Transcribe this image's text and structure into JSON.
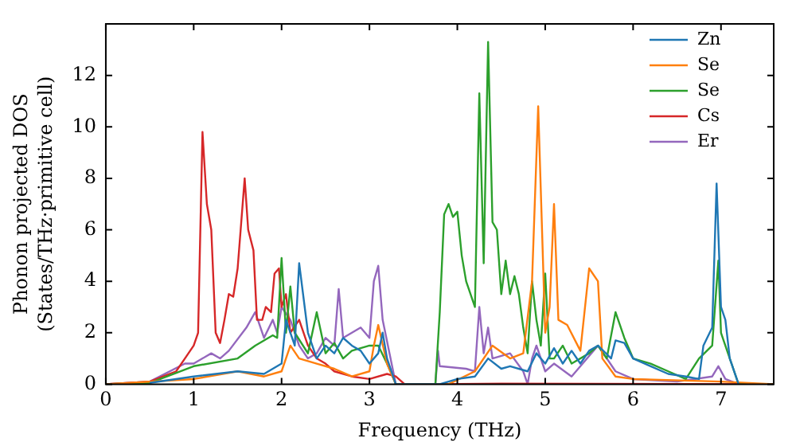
{
  "chart_data": {
    "type": "line",
    "xlabel": "Frequency (THz)",
    "ylabel": "Phonon projected DOS\n(States/THz·primitive cell)",
    "xlim": [
      0,
      7.6
    ],
    "ylim": [
      0,
      14
    ],
    "xticks": [
      0,
      1,
      2,
      3,
      4,
      5,
      6,
      7
    ],
    "yticks": [
      0,
      2,
      4,
      6,
      8,
      10,
      12
    ],
    "grid": false,
    "legend": "top right",
    "marker": "none",
    "line_style": "solid",
    "series": [
      {
        "name": "Zn",
        "color": "#1f77b4",
        "x": [
          0.5,
          1,
          1.5,
          1.8,
          2.0,
          2.05,
          2.15,
          2.2,
          2.3,
          2.4,
          2.5,
          2.6,
          2.7,
          2.8,
          2.9,
          3.0,
          3.1,
          3.15,
          3.2,
          3.3,
          3.8,
          4.0,
          4.2,
          4.35,
          4.5,
          4.6,
          4.8,
          4.9,
          5.0,
          5.1,
          5.2,
          5.3,
          5.4,
          5.5,
          5.6,
          5.75,
          5.8,
          5.9,
          6.0,
          6.2,
          6.4,
          6.6,
          6.75,
          6.8,
          6.9,
          6.95,
          7.0,
          7.05,
          7.1,
          7.2
        ],
        "values": [
          0.05,
          0.3,
          0.5,
          0.4,
          0.8,
          2.5,
          1.5,
          4.7,
          2.0,
          1.0,
          1.5,
          1.2,
          1.8,
          1.5,
          1.3,
          0.8,
          1.2,
          2.0,
          1.0,
          0,
          0,
          0.2,
          0.3,
          1.0,
          0.6,
          0.7,
          0.5,
          1.2,
          0.8,
          1.4,
          0.8,
          1.3,
          0.8,
          1.3,
          1.5,
          1.0,
          1.7,
          1.6,
          1.0,
          0.7,
          0.4,
          0.3,
          0.2,
          1.5,
          2.2,
          7.8,
          3.0,
          2.5,
          1.0,
          0
        ]
      },
      {
        "name": "Se",
        "color": "#ff7f0e",
        "x": [
          0,
          1,
          1.5,
          1.8,
          2.0,
          2.1,
          2.2,
          2.4,
          2.6,
          2.8,
          3.0,
          3.05,
          3.1,
          3.2,
          3.3,
          3.9,
          4.2,
          4.4,
          4.6,
          4.75,
          4.85,
          4.92,
          5.0,
          5.05,
          5.1,
          5.15,
          5.25,
          5.4,
          5.5,
          5.6,
          5.65,
          5.8,
          6.0,
          7.0,
          7.6
        ],
        "values": [
          0,
          0.2,
          0.5,
          0.3,
          0.5,
          1.5,
          1.0,
          0.8,
          0.6,
          0.3,
          0.5,
          1.5,
          2.3,
          0.8,
          0,
          0,
          0.5,
          1.5,
          1.0,
          1.2,
          4.0,
          10.8,
          2.0,
          3.0,
          7.0,
          2.5,
          2.3,
          1.3,
          4.5,
          4.0,
          1.0,
          0.3,
          0.2,
          0.1,
          0
        ]
      },
      {
        "name": "Se",
        "color": "#2ca02c",
        "x": [
          0,
          0.5,
          1,
          1.5,
          1.7,
          1.8,
          1.9,
          1.95,
          2.0,
          2.05,
          2.1,
          2.15,
          2.3,
          2.4,
          2.5,
          2.6,
          2.7,
          2.8,
          3.0,
          3.1,
          3.2,
          3.3,
          3.75,
          3.8,
          3.85,
          3.9,
          3.95,
          4.0,
          4.05,
          4.1,
          4.2,
          4.25,
          4.3,
          4.35,
          4.4,
          4.45,
          4.5,
          4.55,
          4.6,
          4.65,
          4.7,
          4.75,
          4.8,
          4.85,
          4.9,
          4.95,
          5.0,
          5.05,
          5.1,
          5.2,
          5.3,
          5.5,
          5.6,
          5.7,
          5.8,
          5.9,
          6.0,
          6.2,
          6.4,
          6.6,
          6.75,
          6.9,
          6.97,
          7.0,
          7.1,
          7.2,
          7.6
        ],
        "values": [
          0,
          0.05,
          0.7,
          1.0,
          1.5,
          1.7,
          1.9,
          1.8,
          4.9,
          2.0,
          3.8,
          2.0,
          1.2,
          2.8,
          1.2,
          1.6,
          1.0,
          1.3,
          1.5,
          1.5,
          0.8,
          0,
          0,
          2.8,
          6.6,
          7.0,
          6.5,
          6.7,
          5.0,
          4.0,
          3.0,
          11.3,
          4.7,
          13.3,
          6.3,
          6.0,
          3.5,
          4.8,
          3.5,
          4.2,
          3.5,
          2.2,
          1.2,
          4.0,
          2.5,
          1.5,
          4.3,
          1.0,
          1.0,
          1.5,
          0.8,
          1.2,
          1.5,
          1.0,
          2.8,
          1.8,
          1.0,
          0.8,
          0.5,
          0.2,
          1.0,
          1.5,
          4.8,
          2.0,
          1.0,
          0,
          0
        ]
      },
      {
        "name": "Cs",
        "color": "#d62728",
        "x": [
          0,
          0.5,
          0.8,
          0.9,
          1.0,
          1.05,
          1.1,
          1.15,
          1.2,
          1.25,
          1.3,
          1.35,
          1.4,
          1.45,
          1.5,
          1.58,
          1.62,
          1.68,
          1.72,
          1.78,
          1.82,
          1.88,
          1.92,
          1.97,
          2.0,
          2.05,
          2.1,
          2.2,
          2.3,
          2.4,
          2.5,
          2.6,
          2.8,
          3.0,
          3.2,
          3.3,
          3.4,
          3.7,
          4.5,
          7.6
        ],
        "values": [
          0,
          0.1,
          0.5,
          1.0,
          1.5,
          2.0,
          9.8,
          7.0,
          6.0,
          2.0,
          1.6,
          2.5,
          3.5,
          3.4,
          4.5,
          8.0,
          6.0,
          5.2,
          2.5,
          2.5,
          3.0,
          2.8,
          4.3,
          4.5,
          3.0,
          3.5,
          2.0,
          2.5,
          1.5,
          1.0,
          0.8,
          0.5,
          0.3,
          0.2,
          0.4,
          0.3,
          0,
          0,
          0.02,
          0
        ]
      },
      {
        "name": "Er",
        "color": "#9467bd",
        "x": [
          0,
          0.5,
          0.9,
          1.0,
          1.1,
          1.2,
          1.3,
          1.4,
          1.6,
          1.7,
          1.8,
          1.9,
          1.95,
          2.0,
          2.1,
          2.2,
          2.3,
          2.4,
          2.5,
          2.6,
          2.65,
          2.7,
          2.8,
          2.9,
          3.0,
          3.05,
          3.1,
          3.15,
          3.3,
          3.75,
          3.78,
          3.8,
          4.1,
          4.2,
          4.25,
          4.3,
          4.35,
          4.4,
          4.6,
          4.75,
          4.8,
          4.85,
          4.9,
          5.0,
          5.1,
          5.3,
          5.6,
          5.8,
          6.0,
          6.5,
          6.9,
          6.97,
          7.05,
          7.2,
          7.6
        ],
        "values": [
          0,
          0.1,
          0.8,
          0.8,
          1.0,
          1.2,
          1.0,
          1.3,
          2.2,
          2.8,
          1.8,
          2.5,
          2.0,
          3.0,
          2.5,
          1.5,
          1.0,
          1.2,
          1.8,
          1.5,
          3.7,
          1.8,
          2.0,
          2.2,
          1.8,
          4.0,
          4.6,
          2.5,
          0,
          0,
          1.3,
          0.7,
          0.6,
          0.5,
          3.0,
          1.2,
          2.2,
          1.0,
          1.2,
          0.5,
          0,
          1.0,
          1.5,
          0.5,
          0.8,
          0.3,
          1.5,
          0.5,
          0.2,
          0.1,
          0.3,
          0.7,
          0.2,
          0,
          0
        ]
      }
    ]
  }
}
